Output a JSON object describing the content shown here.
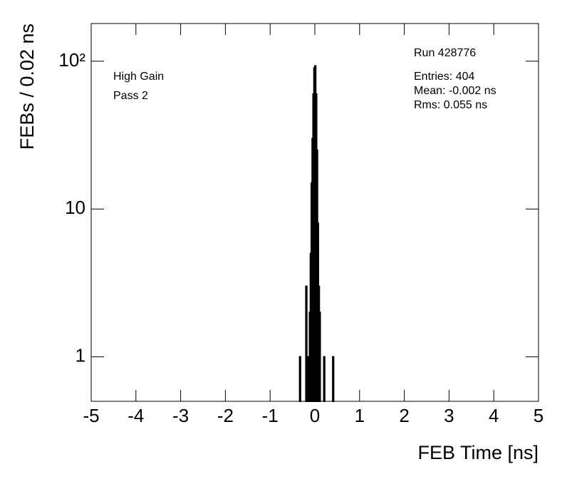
{
  "chart_data": {
    "type": "histogram",
    "x_label": "FEB Time [ns]",
    "y_label": "FEBs / 0.02 ns",
    "annotations": [
      "High Gain",
      "Pass 2"
    ],
    "stats": [
      "Run 428776",
      "Entries: 404",
      "Mean: -0.002 ns",
      "Rms: 0.055 ns"
    ],
    "bins": [
      -0.36,
      -0.34,
      -0.32,
      -0.3,
      -0.28,
      -0.26,
      -0.24,
      -0.22,
      -0.2,
      -0.18,
      -0.16,
      -0.14,
      -0.12,
      -0.1,
      -0.08,
      -0.06,
      -0.04,
      -0.02,
      0,
      0.02,
      0.04,
      0.06,
      0.08,
      0.1,
      0.12,
      0.14,
      0.16,
      0.18,
      0.2,
      0.22,
      0.24,
      0.26,
      0.28,
      0.3,
      0.32,
      0.34,
      0.36,
      0.38,
      0.4,
      0.42
    ],
    "values": [
      0,
      1,
      0,
      0,
      0,
      0,
      0,
      0,
      3,
      1,
      0,
      1,
      2,
      5,
      15,
      30,
      60,
      90,
      93,
      60,
      25,
      8,
      3,
      2,
      0,
      0,
      0,
      0,
      1,
      0,
      0,
      0,
      0,
      0,
      0,
      0,
      0,
      0,
      1
    ],
    "color": "#000000",
    "xlim": [
      -5,
      5
    ],
    "xticks": [
      -5,
      -4,
      -3,
      -2,
      -1,
      0,
      1,
      2,
      3,
      4,
      5
    ],
    "ylim": [
      0.5,
      180
    ],
    "yscale": "log",
    "yticks": [
      1,
      10,
      {
        "value": 100,
        "label": "10²"
      }
    ]
  }
}
